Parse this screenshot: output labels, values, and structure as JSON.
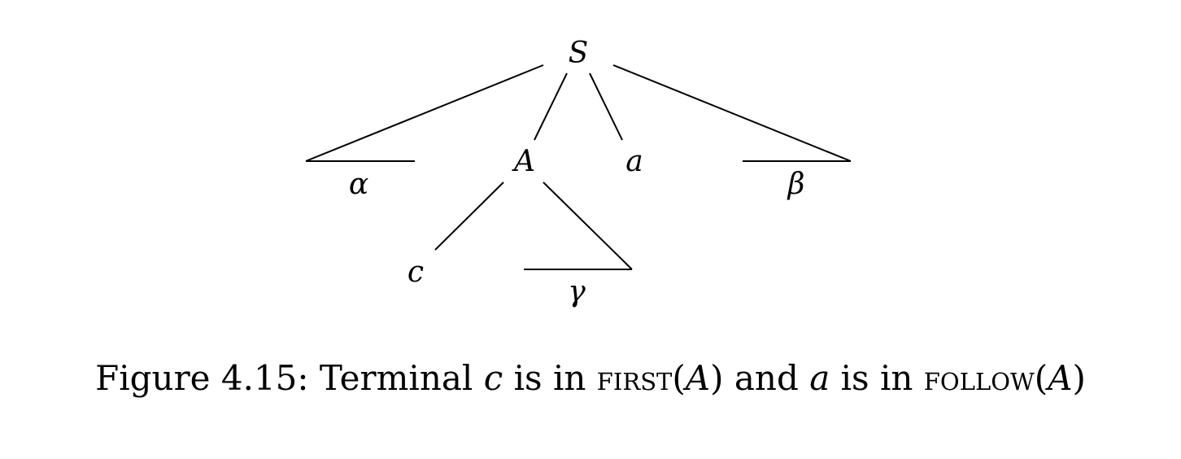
{
  "tree": {
    "root": "S",
    "nodes": {
      "s": "S",
      "alpha": "α",
      "a_nonterminal": "A",
      "a_terminal": "a",
      "beta": "β",
      "c": "c",
      "gamma": "γ"
    }
  },
  "caption": {
    "prefix": "Figure 4.15: Terminal ",
    "term_c": "c",
    "is_in_1": " is in ",
    "first_fn": "FIRST",
    "open_1": "(",
    "nonterminal_1": "A",
    "close_1": ")",
    "and_text": " and ",
    "term_a": "a",
    "is_in_2": " is in ",
    "follow_fn": "FOLLOW",
    "open_2": "(",
    "nonterminal_2": "A",
    "close_2": ")"
  }
}
